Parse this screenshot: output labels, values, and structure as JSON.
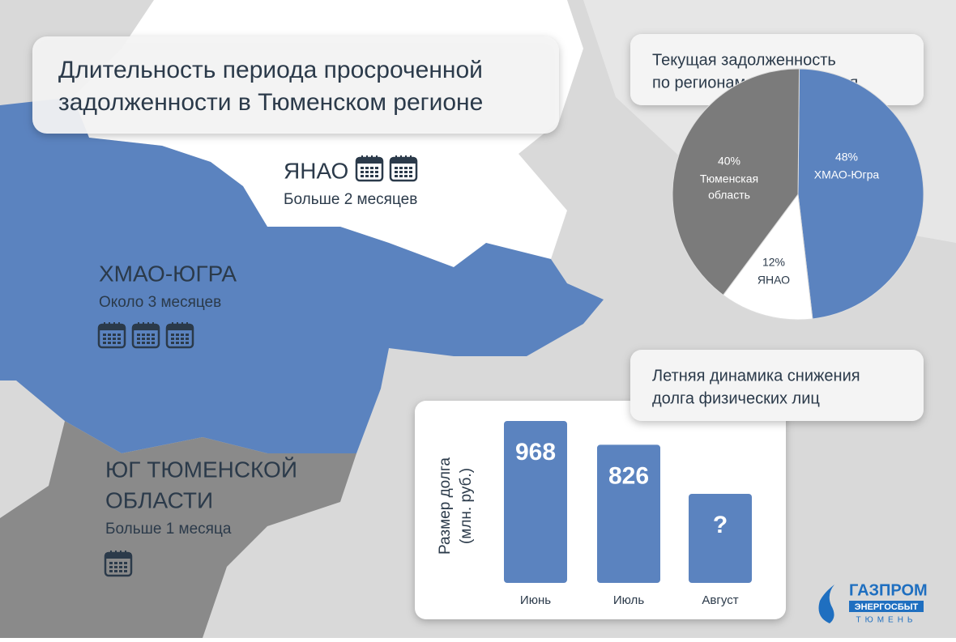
{
  "title": [
    "Длительность периода просроченной",
    "задолженности в Тюменском регионе"
  ],
  "regions": [
    {
      "name": [
        "ЯНАО"
      ],
      "note": "Больше 2 месяцев",
      "calendars": 2
    },
    {
      "name": [
        "ХМАО-ЮГРА"
      ],
      "note": "Около 3 месяцев",
      "calendars": 3
    },
    {
      "name": [
        "ЮГ ТЮМЕНСКОЙ",
        "ОБЛАСТИ"
      ],
      "note": "Больше 1 месяца",
      "calendars": 1
    }
  ],
  "chart_data": [
    {
      "type": "pie",
      "title": [
        "Текущая задолженность",
        "по регионам обслуживания"
      ],
      "categories": [
        [
          "ХМАО-Югра"
        ],
        [
          "ЯНАО"
        ],
        [
          "Тюменская",
          "область"
        ]
      ],
      "values": [
        48,
        12,
        40
      ],
      "value_labels": [
        "48%",
        "12%",
        "40%"
      ],
      "colors": [
        "#5b83bf",
        "#ffffff",
        "#7b7b7b"
      ]
    },
    {
      "type": "bar",
      "title": [
        "Летняя динамика снижения",
        "долга физических лиц"
      ],
      "y_label": [
        "Размер долга",
        "(млн. руб.)"
      ],
      "categories": [
        "Июнь",
        "Июль",
        "Август"
      ],
      "values": [
        968,
        826,
        null
      ],
      "value_labels": [
        "968",
        "826",
        "?"
      ],
      "color": "#5b83bf"
    }
  ],
  "logo": {
    "name": "ГАЗПРОМ",
    "sub": "ЭНЕРГОСБЫТ",
    "city": "ТЮМЕНЬ"
  }
}
